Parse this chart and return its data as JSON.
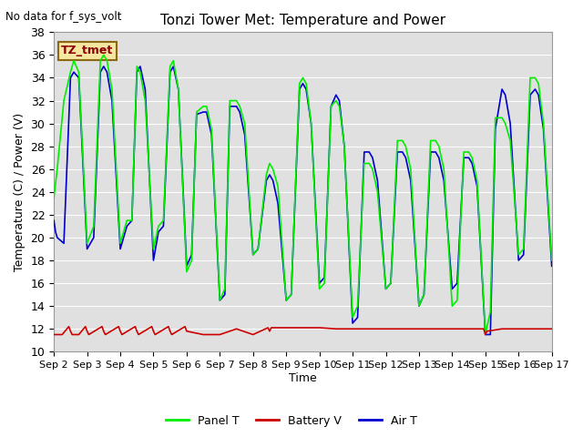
{
  "title": "Tonzi Tower Met: Temperature and Power",
  "top_left_text": "No data for f_sys_volt",
  "ylabel": "Temperature (C) / Power (V)",
  "xlabel": "Time",
  "ylim": [
    10,
    38
  ],
  "xlim": [
    0,
    15
  ],
  "x_tick_labels": [
    "Sep 2",
    "Sep 3",
    "Sep 4",
    "Sep 5",
    "Sep 6",
    "Sep 7",
    "Sep 8",
    "Sep 9",
    "Sep 10",
    "Sep 11",
    "Sep 12",
    "Sep 13",
    "Sep 14",
    "Sep 15",
    "Sep 16",
    "Sep 17"
  ],
  "x_tick_positions": [
    0,
    1,
    2,
    3,
    4,
    5,
    6,
    7,
    8,
    9,
    10,
    11,
    12,
    13,
    14,
    15
  ],
  "yticks": [
    10,
    12,
    14,
    16,
    18,
    20,
    22,
    24,
    26,
    28,
    30,
    32,
    34,
    36,
    38
  ],
  "panel_color": "#00ee00",
  "air_color": "#0000cc",
  "battery_color": "#cc0000",
  "bg_color": "#e0e0e0",
  "legend_label": "TZ_tmet",
  "legend_items": [
    "Panel T",
    "Battery V",
    "Air T"
  ],
  "panel_T_x": [
    0.0,
    0.1,
    0.3,
    0.5,
    0.6,
    0.75,
    1.0,
    1.2,
    1.4,
    1.5,
    1.6,
    1.75,
    2.0,
    2.2,
    2.35,
    2.5,
    2.6,
    2.75,
    3.0,
    3.15,
    3.3,
    3.5,
    3.6,
    3.75,
    4.0,
    4.15,
    4.3,
    4.5,
    4.6,
    4.75,
    5.0,
    5.15,
    5.3,
    5.5,
    5.6,
    5.75,
    6.0,
    6.15,
    6.4,
    6.5,
    6.6,
    6.75,
    7.0,
    7.15,
    7.4,
    7.5,
    7.6,
    7.75,
    8.0,
    8.15,
    8.35,
    8.5,
    8.6,
    8.75,
    9.0,
    9.15,
    9.35,
    9.5,
    9.6,
    9.75,
    10.0,
    10.15,
    10.35,
    10.5,
    10.6,
    10.75,
    11.0,
    11.15,
    11.35,
    11.5,
    11.6,
    11.75,
    12.0,
    12.15,
    12.35,
    12.5,
    12.6,
    12.75,
    13.0,
    13.15,
    13.3,
    13.5,
    13.6,
    13.75,
    14.0,
    14.15,
    14.35,
    14.5,
    14.6,
    14.75,
    15.0
  ],
  "panel_T_y": [
    23.5,
    26.0,
    32.0,
    34.5,
    35.5,
    34.5,
    19.5,
    21.0,
    35.5,
    36.0,
    35.5,
    33.0,
    19.5,
    21.5,
    21.5,
    35.0,
    34.5,
    32.0,
    19.0,
    21.0,
    21.5,
    35.0,
    35.5,
    33.0,
    17.0,
    18.0,
    31.0,
    31.5,
    31.5,
    29.5,
    14.5,
    15.5,
    32.0,
    32.0,
    31.5,
    30.0,
    18.5,
    19.0,
    25.5,
    26.5,
    26.0,
    24.5,
    14.5,
    15.0,
    33.5,
    34.0,
    33.5,
    30.0,
    15.5,
    16.0,
    31.5,
    32.0,
    31.5,
    28.0,
    13.0,
    14.0,
    26.5,
    26.5,
    26.0,
    24.0,
    15.5,
    16.0,
    28.5,
    28.5,
    28.0,
    26.0,
    14.0,
    15.0,
    28.5,
    28.5,
    28.0,
    26.0,
    14.0,
    14.5,
    27.5,
    27.5,
    27.0,
    25.0,
    11.5,
    13.5,
    30.5,
    30.5,
    30.0,
    28.5,
    18.5,
    19.0,
    34.0,
    34.0,
    33.5,
    30.0,
    18.0
  ],
  "air_T_x": [
    0.0,
    0.05,
    0.1,
    0.3,
    0.5,
    0.6,
    0.75,
    1.0,
    1.2,
    1.4,
    1.5,
    1.6,
    1.75,
    2.0,
    2.2,
    2.35,
    2.5,
    2.6,
    2.75,
    3.0,
    3.15,
    3.3,
    3.5,
    3.6,
    3.75,
    4.0,
    4.15,
    4.3,
    4.5,
    4.6,
    4.75,
    5.0,
    5.15,
    5.3,
    5.5,
    5.6,
    5.75,
    6.0,
    6.15,
    6.4,
    6.5,
    6.6,
    6.75,
    7.0,
    7.15,
    7.4,
    7.5,
    7.6,
    7.75,
    8.0,
    8.15,
    8.35,
    8.5,
    8.6,
    8.75,
    9.0,
    9.15,
    9.35,
    9.5,
    9.6,
    9.75,
    10.0,
    10.15,
    10.35,
    10.5,
    10.6,
    10.75,
    11.0,
    11.15,
    11.35,
    11.5,
    11.6,
    11.75,
    12.0,
    12.15,
    12.35,
    12.5,
    12.6,
    12.75,
    13.0,
    13.1,
    13.15,
    13.3,
    13.5,
    13.6,
    13.75,
    14.0,
    14.15,
    14.35,
    14.5,
    14.6,
    14.75,
    15.0
  ],
  "air_T_y": [
    21.5,
    20.5,
    20.0,
    19.5,
    34.0,
    34.5,
    34.0,
    19.0,
    20.0,
    34.5,
    35.0,
    34.5,
    32.0,
    19.0,
    21.0,
    21.5,
    34.5,
    35.0,
    33.0,
    18.0,
    20.5,
    21.0,
    34.5,
    35.0,
    33.0,
    17.5,
    18.5,
    30.8,
    31.0,
    31.0,
    29.0,
    14.5,
    15.0,
    31.5,
    31.5,
    31.0,
    29.0,
    18.5,
    19.0,
    25.0,
    25.5,
    25.0,
    23.0,
    14.5,
    15.0,
    33.0,
    33.5,
    33.0,
    30.0,
    16.0,
    16.5,
    31.5,
    32.5,
    32.0,
    28.0,
    12.5,
    13.0,
    27.5,
    27.5,
    27.0,
    25.0,
    15.5,
    16.0,
    27.5,
    27.5,
    27.0,
    25.0,
    14.0,
    15.0,
    27.5,
    27.5,
    27.0,
    25.0,
    15.5,
    16.0,
    27.0,
    27.0,
    26.5,
    24.5,
    11.5,
    11.5,
    11.5,
    29.5,
    33.0,
    32.5,
    30.0,
    18.0,
    18.5,
    32.5,
    33.0,
    32.5,
    29.5,
    17.5
  ],
  "battery_x": [
    0.0,
    0.25,
    0.45,
    0.5,
    0.55,
    0.75,
    0.95,
    1.0,
    1.05,
    1.45,
    1.5,
    1.55,
    1.95,
    2.0,
    2.05,
    2.45,
    2.5,
    2.55,
    2.95,
    3.0,
    3.05,
    3.45,
    3.5,
    3.55,
    3.95,
    4.0,
    4.5,
    5.0,
    5.5,
    6.0,
    6.45,
    6.5,
    6.55,
    7.0,
    7.5,
    8.0,
    8.5,
    9.0,
    9.5,
    10.0,
    10.5,
    11.0,
    11.5,
    12.0,
    12.5,
    12.95,
    13.0,
    13.05,
    13.5,
    14.0,
    14.5,
    15.0
  ],
  "battery_y": [
    11.5,
    11.5,
    12.2,
    11.8,
    11.5,
    11.5,
    12.2,
    11.8,
    11.5,
    12.2,
    11.8,
    11.5,
    12.2,
    11.8,
    11.5,
    12.2,
    11.8,
    11.5,
    12.2,
    11.8,
    11.5,
    12.2,
    11.8,
    11.5,
    12.2,
    11.8,
    11.5,
    11.5,
    12.0,
    11.5,
    12.1,
    11.8,
    12.1,
    12.1,
    12.1,
    12.1,
    12.0,
    12.0,
    12.0,
    12.0,
    12.0,
    12.0,
    12.0,
    12.0,
    12.0,
    12.0,
    11.5,
    11.8,
    12.0,
    12.0,
    12.0,
    12.0
  ]
}
